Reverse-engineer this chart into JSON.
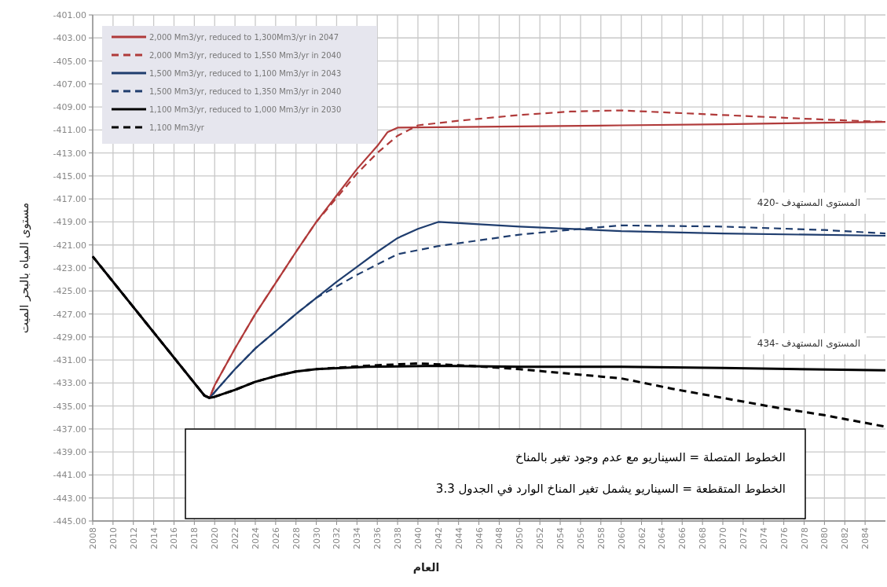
{
  "chart_data": {
    "type": "line",
    "xlabel": "العام",
    "ylabel": "مستوى المياه بالبحر الميت",
    "xlim": [
      2008,
      2086
    ],
    "ylim": [
      -445,
      -401
    ],
    "xticks": [
      2008,
      2010,
      2012,
      2014,
      2016,
      2018,
      2020,
      2022,
      2024,
      2026,
      2028,
      2030,
      2032,
      2034,
      2036,
      2038,
      2040,
      2042,
      2044,
      2046,
      2048,
      2050,
      2052,
      2054,
      2056,
      2058,
      2060,
      2062,
      2064,
      2066,
      2068,
      2070,
      2072,
      2074,
      2076,
      2078,
      2080,
      2082,
      2084
    ],
    "yticks": [
      {
        "value": -401,
        "label": "-401.00"
      },
      {
        "value": -403,
        "label": "-403.00"
      },
      {
        "value": -405,
        "label": "-405.00"
      },
      {
        "value": -407,
        "label": "-407.00"
      },
      {
        "value": -409,
        "label": "-409.00"
      },
      {
        "value": -411,
        "label": "-411.00"
      },
      {
        "value": -413,
        "label": "-413.00"
      },
      {
        "value": -415,
        "label": "-415.00"
      },
      {
        "value": -417,
        "label": "-417.00"
      },
      {
        "value": -419,
        "label": "-419.00"
      },
      {
        "value": -421,
        "label": "-421.00"
      },
      {
        "value": -423,
        "label": "-423.00"
      },
      {
        "value": -425,
        "label": "-425.00"
      },
      {
        "value": -427,
        "label": "-427.00"
      },
      {
        "value": -429,
        "label": "-429.00"
      },
      {
        "value": -431,
        "label": "-431.00"
      },
      {
        "value": -433,
        "label": "-433.00"
      },
      {
        "value": -435,
        "label": "-435.00"
      },
      {
        "value": -437,
        "label": "-437.00"
      },
      {
        "value": -439,
        "label": "-439.00"
      },
      {
        "value": -441,
        "label": "-441.00"
      },
      {
        "value": -443,
        "label": "-443.00"
      },
      {
        "value": -445,
        "label": "-445.00"
      }
    ],
    "grid": true,
    "legend": "top left",
    "line_style": "solid",
    "series": [
      {
        "name": "2,000 Mm3/yr, reduced to 1,300Mm3/yr in 2047",
        "color": "#b03a3a",
        "x": [
          2008,
          2019,
          2019.5,
          2020,
          2022,
          2024,
          2026,
          2028,
          2030,
          2032,
          2034,
          2036,
          2037,
          2038,
          2050,
          2060,
          2070,
          2086
        ],
        "values": [
          -422,
          -434.1,
          -434.3,
          -433.2,
          -430,
          -427,
          -424.3,
          -421.6,
          -419,
          -416.7,
          -414.4,
          -412.4,
          -411.2,
          -410.8,
          -410.7,
          -410.6,
          -410.5,
          -410.3
        ]
      },
      {
        "name": "2,000 Mm3/yr, reduced to 1,550 Mm3/yr in 2040",
        "color": "#b03a3a",
        "line_style": "dashed",
        "x": [
          2008,
          2019,
          2019.5,
          2020,
          2022,
          2024,
          2026,
          2028,
          2030,
          2032,
          2034,
          2036,
          2038,
          2040,
          2044,
          2050,
          2055,
          2060,
          2065,
          2070,
          2080,
          2086
        ],
        "values": [
          -422,
          -434.1,
          -434.3,
          -433.2,
          -430,
          -427,
          -424.3,
          -421.6,
          -419,
          -416.9,
          -414.8,
          -413,
          -411.5,
          -410.6,
          -410.2,
          -409.7,
          -409.4,
          -409.3,
          -409.5,
          -409.7,
          -410.1,
          -410.3
        ]
      },
      {
        "name": "1,500 Mm3/yr, reduced to 1,100 Mm3/yr in 2043",
        "color": "#1f3d6e",
        "x": [
          2008,
          2019,
          2019.5,
          2020,
          2022,
          2024,
          2026,
          2028,
          2030,
          2032,
          2034,
          2036,
          2038,
          2040,
          2042,
          2050,
          2060,
          2070,
          2086
        ],
        "values": [
          -422,
          -434.1,
          -434.3,
          -433.8,
          -431.8,
          -430,
          -428.5,
          -427,
          -425.6,
          -424.2,
          -422.9,
          -421.6,
          -420.4,
          -419.6,
          -419,
          -419.4,
          -419.8,
          -420,
          -420.2
        ]
      },
      {
        "name": "1,500 Mm3/yr, reduced to 1,350 Mm3/yr in 2040",
        "color": "#1f3d6e",
        "line_style": "dashed",
        "x": [
          2008,
          2019,
          2019.5,
          2020,
          2022,
          2024,
          2026,
          2028,
          2030,
          2034,
          2038,
          2042,
          2050,
          2056,
          2060,
          2070,
          2080,
          2086
        ],
        "values": [
          -422,
          -434.1,
          -434.3,
          -433.8,
          -431.8,
          -430,
          -428.5,
          -427,
          -425.6,
          -423.6,
          -421.8,
          -421.1,
          -420.1,
          -419.6,
          -419.3,
          -419.4,
          -419.7,
          -420
        ]
      },
      {
        "name": "1,100 Mm3/yr, reduced to 1,000 Mm3/yr in 2030",
        "color": "#000000",
        "x": [
          2008,
          2019,
          2019.5,
          2020,
          2022,
          2024,
          2026,
          2028,
          2030,
          2035,
          2042,
          2050,
          2060,
          2070,
          2086
        ],
        "values": [
          -422,
          -434.1,
          -434.3,
          -434.2,
          -433.6,
          -432.9,
          -432.4,
          -432,
          -431.8,
          -431.6,
          -431.5,
          -431.6,
          -431.6,
          -431.7,
          -431.9
        ]
      },
      {
        "name": "1,100 Mm3/yr",
        "color": "#000000",
        "line_style": "dashed",
        "x": [
          2008,
          2019,
          2019.5,
          2020,
          2022,
          2024,
          2026,
          2028,
          2030,
          2035,
          2040,
          2045,
          2050,
          2055,
          2060,
          2065,
          2070,
          2075,
          2080,
          2086
        ],
        "values": [
          -422,
          -434.1,
          -434.3,
          -434.2,
          -433.6,
          -432.9,
          -432.4,
          -432,
          -431.8,
          -431.5,
          -431.3,
          -431.5,
          -431.8,
          -432.2,
          -432.6,
          -433.5,
          -434.3,
          -435.1,
          -435.8,
          -436.8
        ]
      }
    ],
    "annotations": [
      "المستوى المستهدف -420",
      "المستوى المستهدف -434",
      "الخطوط المتصلة = السيناريو مع عدم وجود تغير بالمناخ",
      "الخطوط المتقطعة = السيناريو يشمل تغير المناخ الوارد في الجدول 3.3"
    ]
  }
}
